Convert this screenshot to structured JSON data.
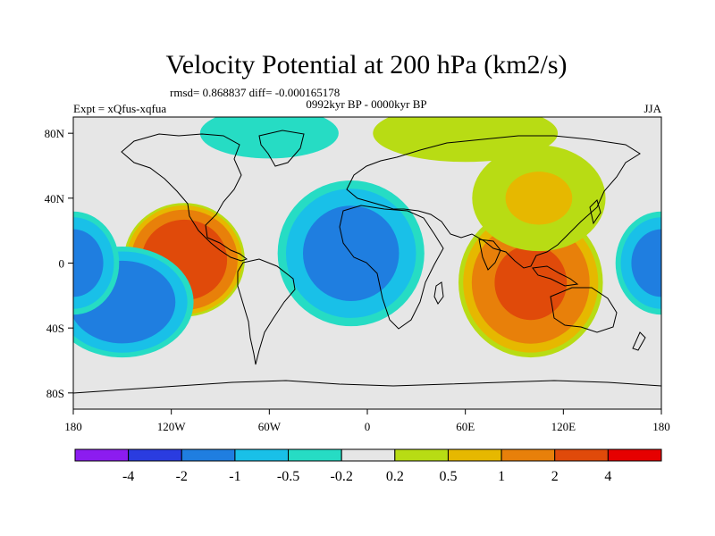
{
  "chart_data": {
    "type": "contour_map",
    "title": "Velocity Potential at 200 hPa (km2/s)",
    "stats_text": "rmsd= 0.868837 diff= -0.000165178",
    "left_label": "Expt = xQfus-xqfua",
    "center_label": "0992kyr BP - 0000kyr BP",
    "right_label": "JJA",
    "x_range": [
      -180,
      180
    ],
    "y_range": [
      -90,
      90
    ],
    "x_ticks": [
      {
        "value": -180,
        "label": "180"
      },
      {
        "value": -120,
        "label": "120W"
      },
      {
        "value": -60,
        "label": "60W"
      },
      {
        "value": 0,
        "label": "0"
      },
      {
        "value": 60,
        "label": "60E"
      },
      {
        "value": 120,
        "label": "120E"
      },
      {
        "value": 180,
        "label": "180"
      }
    ],
    "y_ticks": [
      {
        "value": 80,
        "label": "80N"
      },
      {
        "value": 40,
        "label": "40N"
      },
      {
        "value": 0,
        "label": "0"
      },
      {
        "value": -40,
        "label": "40S"
      },
      {
        "value": -80,
        "label": "80S"
      }
    ],
    "levels": [
      "-4",
      "-2",
      "-1",
      "-0.5",
      "-0.2",
      "0.2",
      "0.5",
      "1",
      "2",
      "4"
    ],
    "colors": [
      "#8c1cf0",
      "#2a3ce0",
      "#1f7ee0",
      "#19c0e8",
      "#26dcc4",
      "#e6e6e6",
      "#b8dc14",
      "#e6b800",
      "#e8800a",
      "#e04a0a",
      "#e60000"
    ],
    "fields": [
      {
        "name": "North Pacific anomaly",
        "lon": -112,
        "lat": 2,
        "rx": 38,
        "ry": 36,
        "amp": 3.8
      },
      {
        "name": "Atlantic-Africa low",
        "lon": -10,
        "lat": 6,
        "rx": 48,
        "ry": 48,
        "amp": -1.6
      },
      {
        "name": "East Pacific low",
        "lon": -150,
        "lat": -24,
        "rx": 46,
        "ry": 36,
        "amp": -2.0
      },
      {
        "name": "Central Pacific low (east)",
        "lon": 180,
        "lat": 0,
        "rx": 30,
        "ry": 34,
        "amp": -1.6
      },
      {
        "name": "Central Pacific low (west)",
        "lon": -180,
        "lat": 0,
        "rx": 30,
        "ry": 34,
        "amp": -1.6
      },
      {
        "name": "Asia-Australia high",
        "lon": 100,
        "lat": -12,
        "rx": 46,
        "ry": 48,
        "amp": 2.6
      },
      {
        "name": "Asia high north",
        "lon": 105,
        "lat": 40,
        "rx": 50,
        "ry": 40,
        "amp": 0.6
      },
      {
        "name": "Arctic high",
        "lon": 60,
        "lat": 80,
        "rx": 80,
        "ry": 25,
        "amp": 0.4
      },
      {
        "name": "Arctic low",
        "lon": -60,
        "lat": 80,
        "rx": 60,
        "ry": 22,
        "amp": -0.4
      },
      {
        "name": "Southern ocean",
        "lon": 0,
        "lat": -85,
        "rx": 120,
        "ry": 18,
        "amp": -0.1
      }
    ]
  }
}
